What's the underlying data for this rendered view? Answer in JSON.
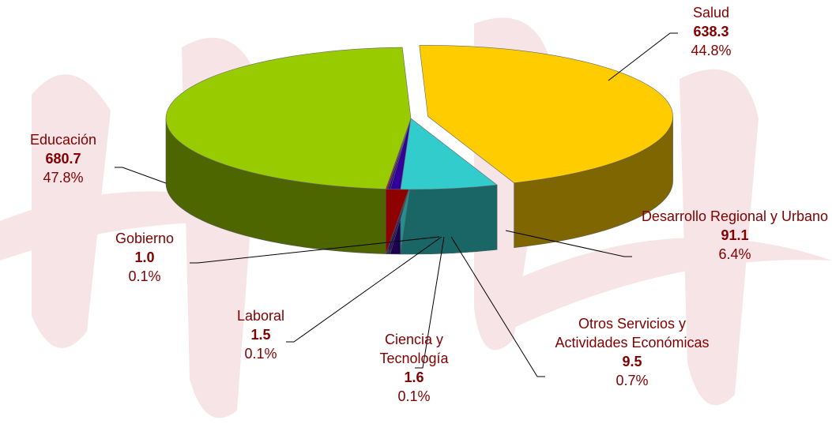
{
  "chart_data": {
    "type": "pie",
    "categories": [
      "Salud",
      "Desarrollo Regional y Urbano",
      "Otros Servicios y Actividades Económicas",
      "Ciencia y Tecnología",
      "Laboral",
      "Gobierno",
      "Educación"
    ],
    "values": [
      638.3,
      91.1,
      9.5,
      1.6,
      1.5,
      1.0,
      680.7
    ],
    "value_labels": [
      "638.3",
      "91.1",
      "9.5",
      "1.6",
      "1.5",
      "1.0",
      "680.7"
    ],
    "percentages": [
      44.8,
      6.4,
      0.7,
      0.1,
      0.1,
      0.1,
      47.8
    ],
    "percentage_labels": [
      "44.8%",
      "6.4%",
      "0.7%",
      "0.1%",
      "0.1%",
      "0.1%",
      "47.8%"
    ],
    "colors": [
      "#ffcc00",
      "#33cccc",
      "#330099",
      "#000080",
      "#660066",
      "#cc0000",
      "#99cc00"
    ]
  }
}
